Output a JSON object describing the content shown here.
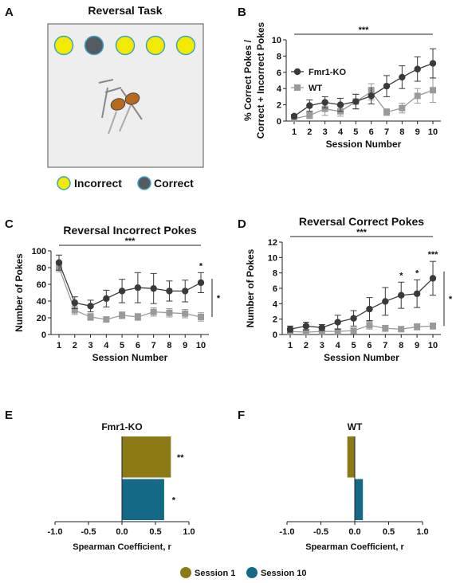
{
  "panel_labels": [
    "A",
    "B",
    "C",
    "D",
    "E",
    "F"
  ],
  "panel_a": {
    "title": "Reversal Task",
    "legend_incorrect": "Incorrect",
    "legend_correct": "Correct",
    "colors": {
      "incorrect": "#f2ea00",
      "correct": "#555a60",
      "ring": "#3da3c8",
      "mouse": "#b86a1c",
      "arena": "#eeeeee"
    }
  },
  "chart_data": [
    {
      "id": "B",
      "type": "line",
      "ylabel": "% Correct Pokes / Correct + Incorrect Pokes",
      "ylabel_lines": [
        "% Correct Pokes /",
        "Correct + Incorrect Pokes"
      ],
      "xlabel": "Session Number",
      "x": [
        1,
        2,
        3,
        4,
        5,
        6,
        7,
        8,
        9,
        10
      ],
      "ylim": [
        0,
        10
      ],
      "yticks": [
        0,
        2,
        4,
        6,
        8,
        10
      ],
      "legend": "top-left",
      "significance": "***",
      "series": [
        {
          "name": "Fmr1-KO",
          "color": "#3a3a3a",
          "marker": "circle",
          "values": [
            0.6,
            1.9,
            2.3,
            2.0,
            2.4,
            3.1,
            4.3,
            5.4,
            6.4,
            7.1
          ],
          "errors": [
            0.2,
            0.7,
            0.7,
            0.8,
            0.9,
            1.0,
            1.3,
            1.4,
            1.5,
            1.8
          ]
        },
        {
          "name": "WT",
          "color": "#9a9a9a",
          "marker": "square",
          "values": [
            0.3,
            0.7,
            1.5,
            1.2,
            2.4,
            3.6,
            1.1,
            1.6,
            3.1,
            3.8
          ],
          "errors": [
            0.2,
            0.4,
            0.8,
            0.6,
            0.9,
            1.0,
            0.4,
            0.6,
            0.9,
            1.5
          ]
        }
      ]
    },
    {
      "id": "C",
      "type": "line",
      "title": "Reversal Incorrect Pokes",
      "ylabel": "Number of Pokes",
      "xlabel": "Session Number",
      "x": [
        1,
        2,
        3,
        4,
        5,
        6,
        7,
        8,
        9,
        10
      ],
      "ylim": [
        0,
        100
      ],
      "yticks": [
        0,
        20,
        40,
        60,
        80,
        100
      ],
      "significance": "***",
      "point_annotations": [
        {
          "x": 10,
          "text": "*"
        }
      ],
      "bracket_annotation": "*",
      "series": [
        {
          "name": "Fmr1-KO",
          "color": "#3a3a3a",
          "marker": "circle",
          "values": [
            86,
            38,
            34,
            43,
            52,
            56,
            55,
            52,
            52,
            62
          ],
          "errors": [
            9,
            7,
            7,
            10,
            14,
            18,
            18,
            12,
            13,
            12
          ]
        },
        {
          "name": "WT",
          "color": "#9a9a9a",
          "marker": "square",
          "values": [
            80,
            29,
            21,
            18,
            23,
            21,
            27,
            26,
            25,
            21
          ],
          "errors": [
            5,
            5,
            4,
            3,
            4,
            4,
            5,
            5,
            5,
            5
          ]
        }
      ]
    },
    {
      "id": "D",
      "type": "line",
      "title": "Reversal Correct Pokes",
      "ylabel": "Number of Pokes",
      "xlabel": "Session Number",
      "x": [
        1,
        2,
        3,
        4,
        5,
        6,
        7,
        8,
        9,
        10
      ],
      "ylim": [
        0,
        12
      ],
      "yticks": [
        0,
        2,
        4,
        6,
        8,
        10,
        12
      ],
      "significance": "***",
      "point_annotations": [
        {
          "x": 8,
          "text": "*"
        },
        {
          "x": 9,
          "text": "*"
        },
        {
          "x": 10,
          "text": "***"
        }
      ],
      "bracket_annotation": "*",
      "series": [
        {
          "name": "Fmr1-KO",
          "color": "#3a3a3a",
          "marker": "circle",
          "values": [
            0.7,
            1.1,
            0.9,
            1.6,
            2.1,
            3.3,
            4.3,
            5.1,
            5.3,
            7.3
          ],
          "errors": [
            0.4,
            0.5,
            0.4,
            0.9,
            1.0,
            1.5,
            1.8,
            1.7,
            1.8,
            2.2
          ]
        },
        {
          "name": "WT",
          "color": "#9a9a9a",
          "marker": "square",
          "values": [
            0.4,
            0.3,
            0.4,
            0.4,
            0.5,
            1.2,
            0.8,
            0.7,
            1.0,
            1.1
          ],
          "errors": [
            0.3,
            0.3,
            0.3,
            0.3,
            0.3,
            0.5,
            0.4,
            0.3,
            0.4,
            0.4
          ]
        }
      ]
    },
    {
      "id": "E",
      "type": "bar",
      "orientation": "horizontal",
      "title": "Fmr1-KO",
      "xlabel": "Spearman Coefficient, r",
      "xlim": [
        -1.0,
        1.0
      ],
      "xticks": [
        "-1.0",
        "-0.5",
        "0.0",
        "0.5",
        "1.0"
      ],
      "categories": [
        "Session 1",
        "Session 10"
      ],
      "values": [
        0.73,
        0.63
      ],
      "colors": [
        "#8b7a16",
        "#146a86"
      ],
      "annotations": [
        "**",
        "*"
      ]
    },
    {
      "id": "F",
      "type": "bar",
      "orientation": "horizontal",
      "title": "WT",
      "xlabel": "Spearman Coefficient, r",
      "xlim": [
        -1.0,
        1.0
      ],
      "xticks": [
        "-1.0",
        "-0.5",
        "0.0",
        "0.5",
        "1.0"
      ],
      "categories": [
        "Session 1",
        "Session 10"
      ],
      "values": [
        -0.11,
        0.12
      ],
      "colors": [
        "#8b7a16",
        "#146a86"
      ],
      "annotations": [
        "",
        ""
      ]
    }
  ],
  "bottom_legend": [
    {
      "label": "Session 1",
      "color": "#8b7a16"
    },
    {
      "label": "Session 10",
      "color": "#146a86"
    }
  ]
}
